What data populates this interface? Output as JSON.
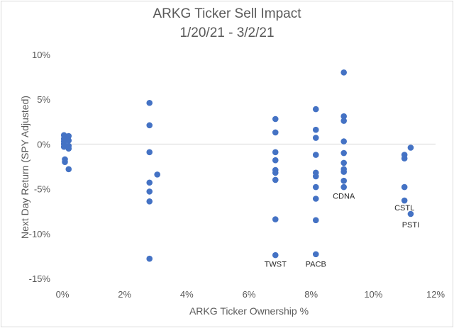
{
  "chart_data": {
    "type": "scatter",
    "title": "ARKG Ticker Sell Impact",
    "subtitle": "1/20/21 - 3/2/21",
    "xlabel": "ARKG Ticker Ownership %",
    "ylabel": "Next Day Return (SPY Adjusted)",
    "xlim": [
      0,
      12
    ],
    "ylim": [
      -15,
      10
    ],
    "x_ticks": [
      "0%",
      "2%",
      "4%",
      "6%",
      "8%",
      "10%",
      "12%"
    ],
    "y_ticks": [
      "10%",
      "5%",
      "0%",
      "-5%",
      "-10%",
      "-15%"
    ],
    "grid": false,
    "marker_color": "#4472C4",
    "points": [
      {
        "x": 0.05,
        "y": 1.0
      },
      {
        "x": 0.05,
        "y": 0.6
      },
      {
        "x": 0.05,
        "y": 0.3
      },
      {
        "x": 0.05,
        "y": 0.0
      },
      {
        "x": 0.05,
        "y": -0.3
      },
      {
        "x": 0.08,
        "y": -1.7
      },
      {
        "x": 0.08,
        "y": -2.0
      },
      {
        "x": 0.2,
        "y": 0.9
      },
      {
        "x": 0.2,
        "y": 0.4
      },
      {
        "x": 0.2,
        "y": -0.2
      },
      {
        "x": 0.2,
        "y": -0.5
      },
      {
        "x": 0.2,
        "y": -2.8
      },
      {
        "x": 2.8,
        "y": 4.6
      },
      {
        "x": 2.8,
        "y": 2.1
      },
      {
        "x": 2.8,
        "y": -0.9
      },
      {
        "x": 2.8,
        "y": -4.3
      },
      {
        "x": 2.8,
        "y": -5.3
      },
      {
        "x": 2.8,
        "y": -6.4
      },
      {
        "x": 2.8,
        "y": -12.8
      },
      {
        "x": 3.05,
        "y": -3.4
      },
      {
        "x": 6.85,
        "y": 2.8
      },
      {
        "x": 6.85,
        "y": 1.3
      },
      {
        "x": 6.85,
        "y": -0.9
      },
      {
        "x": 6.85,
        "y": -1.8
      },
      {
        "x": 6.85,
        "y": -2.9
      },
      {
        "x": 6.85,
        "y": -3.2
      },
      {
        "x": 6.85,
        "y": -4.0
      },
      {
        "x": 6.85,
        "y": -8.4
      },
      {
        "x": 6.85,
        "y": -12.4
      },
      {
        "x": 8.15,
        "y": 3.9
      },
      {
        "x": 8.15,
        "y": 1.6
      },
      {
        "x": 8.15,
        "y": 0.7
      },
      {
        "x": 8.15,
        "y": -1.2
      },
      {
        "x": 8.15,
        "y": -3.2
      },
      {
        "x": 8.15,
        "y": -3.6
      },
      {
        "x": 8.15,
        "y": -4.8
      },
      {
        "x": 8.15,
        "y": -6.1
      },
      {
        "x": 8.15,
        "y": -8.5
      },
      {
        "x": 8.15,
        "y": -12.3
      },
      {
        "x": 9.05,
        "y": 8.0
      },
      {
        "x": 9.05,
        "y": 3.1
      },
      {
        "x": 9.05,
        "y": 2.6
      },
      {
        "x": 9.05,
        "y": 0.3
      },
      {
        "x": 9.05,
        "y": -1.0
      },
      {
        "x": 9.05,
        "y": -2.1
      },
      {
        "x": 9.05,
        "y": -2.8
      },
      {
        "x": 9.05,
        "y": -3.1
      },
      {
        "x": 9.05,
        "y": -4.1
      },
      {
        "x": 9.05,
        "y": -4.8
      },
      {
        "x": 11.0,
        "y": -1.2
      },
      {
        "x": 11.0,
        "y": -1.6
      },
      {
        "x": 11.0,
        "y": -4.8
      },
      {
        "x": 11.0,
        "y": -6.3
      },
      {
        "x": 11.2,
        "y": -0.4
      },
      {
        "x": 11.2,
        "y": -7.8
      }
    ],
    "annotations": [
      {
        "text": "TWST",
        "x": 6.85,
        "y": -13.7
      },
      {
        "text": "PACB",
        "x": 8.15,
        "y": -13.7
      },
      {
        "text": "CDNA",
        "x": 9.05,
        "y": -6.1
      },
      {
        "text": "CSTL",
        "x": 11.0,
        "y": -7.4
      },
      {
        "text": "PSTI",
        "x": 11.2,
        "y": -9.3
      }
    ]
  }
}
